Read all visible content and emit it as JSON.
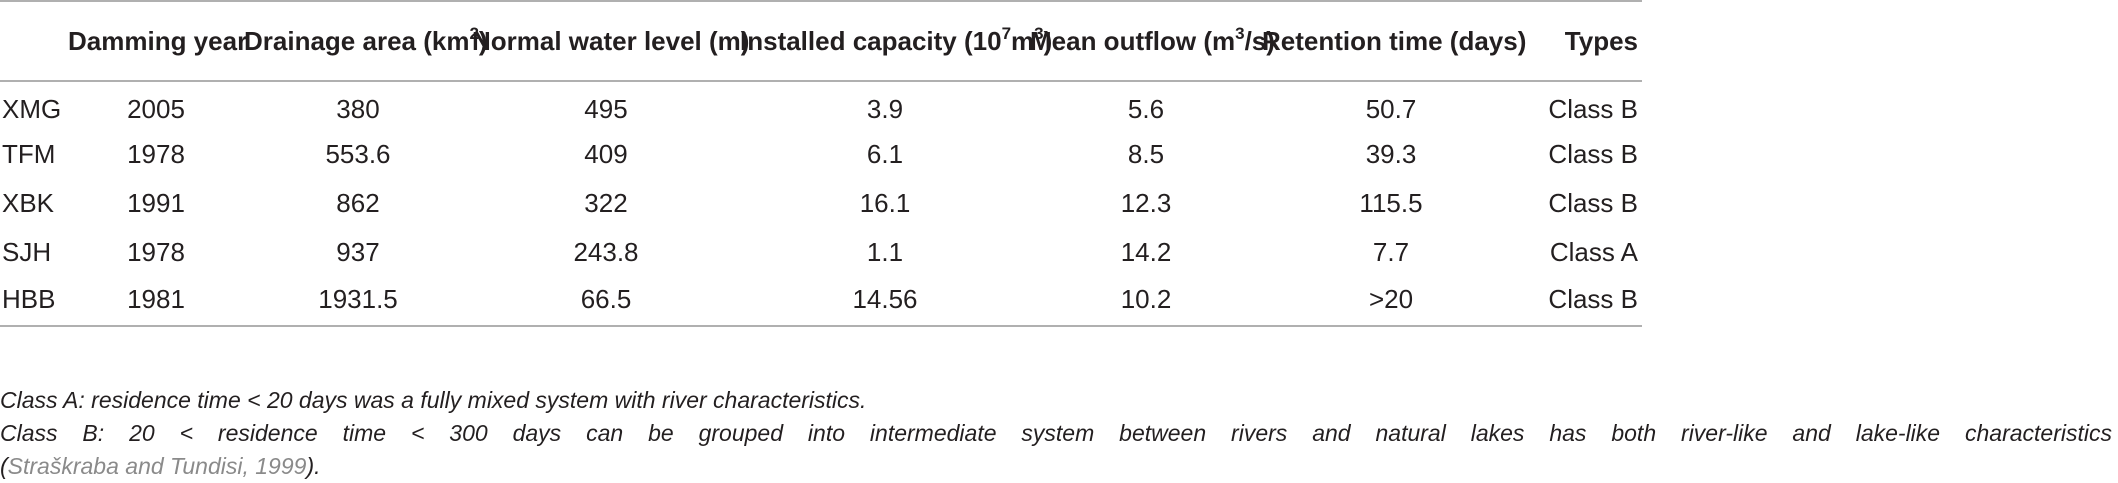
{
  "table": {
    "headers": {
      "name": "",
      "damming_year": "Damming year",
      "drainage_area": "Drainage area (km",
      "drainage_area_sup": "2",
      "drainage_area_end": ")",
      "normal_water_level": "Normal water level (m)",
      "installed_capacity": "Installed capacity (10",
      "installed_capacity_sup1": "7",
      "installed_capacity_mid": "m",
      "installed_capacity_sup2": "3",
      "installed_capacity_end": ")",
      "mean_outflow": "Mean outflow (m",
      "mean_outflow_sup": "3",
      "mean_outflow_end": "/s)",
      "retention_time": "Retention time (days)",
      "types": "Types"
    },
    "rows": [
      {
        "name": "XMG",
        "damming_year": "2005",
        "drainage_area": "380",
        "normal_water_level": "495",
        "installed_capacity": "3.9",
        "mean_outflow": "5.6",
        "retention_time": "50.7",
        "type": "Class B"
      },
      {
        "name": "TFM",
        "damming_year": "1978",
        "drainage_area": "553.6",
        "normal_water_level": "409",
        "installed_capacity": "6.1",
        "mean_outflow": "8.5",
        "retention_time": "39.3",
        "type": "Class B"
      },
      {
        "name": "XBK",
        "damming_year": "1991",
        "drainage_area": "862",
        "normal_water_level": "322",
        "installed_capacity": "16.1",
        "mean_outflow": "12.3",
        "retention_time": "115.5",
        "type": "Class B"
      },
      {
        "name": "SJH",
        "damming_year": "1978",
        "drainage_area": "937",
        "normal_water_level": "243.8",
        "installed_capacity": "1.1",
        "mean_outflow": "14.2",
        "retention_time": "7.7",
        "type": "Class A"
      },
      {
        "name": "HBB",
        "damming_year": "1981",
        "drainage_area": "1931.5",
        "normal_water_level": "66.5",
        "installed_capacity": "14.56",
        "mean_outflow": "10.2",
        "retention_time": ">20",
        "type": "Class B"
      }
    ]
  },
  "notes": {
    "class_a": "Class A: residence time < 20 days was a fully mixed system with river characteristics.",
    "class_b": "Class B: 20 < residence time < 300 days can be grouped into intermediate system between rivers and natural lakes has both river-like and lake-like characteristics",
    "citation": "Straškraba and Tundisi, 1999",
    "citation_open": "(",
    "citation_close": ")."
  }
}
